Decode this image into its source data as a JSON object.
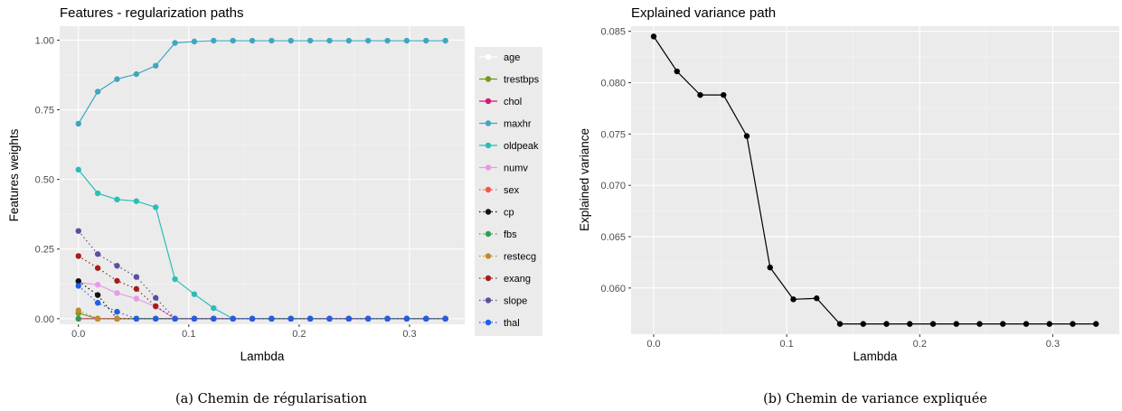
{
  "chart_data": [
    {
      "type": "line",
      "title": "Features - regularization paths",
      "xlabel": "Lambda",
      "ylabel": "Features weights",
      "xlim": [
        -0.017,
        0.35
      ],
      "ylim": [
        -0.02,
        1.05
      ],
      "xticks": [
        0.0,
        0.1,
        0.2,
        0.3
      ],
      "xtick_labels": [
        "0.0",
        "0.1",
        "0.2",
        "0.3"
      ],
      "yticks": [
        0.0,
        0.25,
        0.5,
        0.75,
        1.0
      ],
      "ytick_labels": [
        "0.00",
        "0.25",
        "0.50",
        "0.75",
        "1.00"
      ],
      "grid": true,
      "legend_position": "right",
      "caption": "(a)  Chemin de régularisation",
      "x": [
        0,
        0.0175,
        0.035,
        0.0525,
        0.07,
        0.0875,
        0.105,
        0.1225,
        0.14,
        0.1575,
        0.175,
        0.1925,
        0.21,
        0.2275,
        0.245,
        0.2625,
        0.28,
        0.2975,
        0.315,
        0.3325
      ],
      "series": [
        {
          "name": "age",
          "color": "#ffffff",
          "dash": "solid",
          "values": [
            0,
            0,
            0,
            0,
            0,
            0,
            0,
            0,
            0,
            0,
            0,
            0,
            0,
            0,
            0,
            0,
            0,
            0,
            0,
            0
          ]
        },
        {
          "name": "trestbps",
          "color": "#6e9a1f",
          "dash": "solid",
          "values": [
            0.02,
            0,
            0,
            0,
            0,
            0,
            0,
            0,
            0,
            0,
            0,
            0,
            0,
            0,
            0,
            0,
            0,
            0,
            0,
            0
          ]
        },
        {
          "name": "chol",
          "color": "#d41a73",
          "dash": "solid",
          "values": [
            0,
            0,
            0,
            0,
            0,
            0,
            0,
            0,
            0,
            0,
            0,
            0,
            0,
            0,
            0,
            0,
            0,
            0,
            0,
            0
          ]
        },
        {
          "name": "maxhr",
          "color": "#41a5c0",
          "dash": "solid",
          "values": [
            0.7,
            0.815,
            0.86,
            0.878,
            0.908,
            0.99,
            0.995,
            0.998,
            0.998,
            0.998,
            0.998,
            0.998,
            0.998,
            0.998,
            0.998,
            0.998,
            0.998,
            0.998,
            0.998,
            0.998
          ]
        },
        {
          "name": "oldpeak",
          "color": "#2bbdb8",
          "dash": "solid",
          "values": [
            0.535,
            0.45,
            0.428,
            0.422,
            0.4,
            0.142,
            0.088,
            0.038,
            0,
            0,
            0,
            0,
            0,
            0,
            0,
            0,
            0,
            0,
            0,
            0
          ]
        },
        {
          "name": "numv",
          "color": "#e89ae6",
          "dash": "solid",
          "values": [
            0.13,
            0.122,
            0.092,
            0.072,
            0.043,
            0,
            0,
            0,
            0,
            0,
            0,
            0,
            0,
            0,
            0,
            0,
            0,
            0,
            0,
            0
          ]
        },
        {
          "name": "sex",
          "color": "#f0584a",
          "dash": "dotted",
          "values": [
            0,
            0,
            0,
            0,
            0,
            0,
            0,
            0,
            0,
            0,
            0,
            0,
            0,
            0,
            0,
            0,
            0,
            0,
            0,
            0
          ]
        },
        {
          "name": "cp",
          "color": "#111111",
          "dash": "dotted",
          "values": [
            0.135,
            0.085,
            0,
            0,
            0,
            0,
            0,
            0,
            0,
            0,
            0,
            0,
            0,
            0,
            0,
            0,
            0,
            0,
            0,
            0
          ]
        },
        {
          "name": "fbs",
          "color": "#2f9e55",
          "dash": "dotted",
          "values": [
            0,
            0,
            0,
            0,
            0,
            0,
            0,
            0,
            0,
            0,
            0,
            0,
            0,
            0,
            0,
            0,
            0,
            0,
            0,
            0
          ]
        },
        {
          "name": "restecg",
          "color": "#c28a2e",
          "dash": "dotted",
          "values": [
            0.03,
            0,
            0,
            0,
            0,
            0,
            0,
            0,
            0,
            0,
            0,
            0,
            0,
            0,
            0,
            0,
            0,
            0,
            0,
            0
          ]
        },
        {
          "name": "exang",
          "color": "#a51c1c",
          "dash": "dotted",
          "values": [
            0.225,
            0.182,
            0.136,
            0.107,
            0.045,
            0,
            0,
            0,
            0,
            0,
            0,
            0,
            0,
            0,
            0,
            0,
            0,
            0,
            0,
            0
          ]
        },
        {
          "name": "slope",
          "color": "#5d4f9e",
          "dash": "dotted",
          "values": [
            0.315,
            0.232,
            0.19,
            0.15,
            0.075,
            0,
            0,
            0,
            0,
            0,
            0,
            0,
            0,
            0,
            0,
            0,
            0,
            0,
            0,
            0
          ]
        },
        {
          "name": "thal",
          "color": "#1f5ee8",
          "dash": "dotted",
          "values": [
            0.118,
            0.057,
            0.025,
            0,
            0,
            0,
            0,
            0,
            0,
            0,
            0,
            0,
            0,
            0,
            0,
            0,
            0,
            0,
            0,
            0
          ]
        }
      ]
    },
    {
      "type": "line",
      "title": "Explained variance path",
      "xlabel": "Lambda",
      "ylabel": "Explained variance",
      "xlim": [
        -0.017,
        0.35
      ],
      "ylim": [
        0.0555,
        0.0855
      ],
      "xticks": [
        0.0,
        0.1,
        0.2,
        0.3
      ],
      "xtick_labels": [
        "0.0",
        "0.1",
        "0.2",
        "0.3"
      ],
      "yticks": [
        0.06,
        0.065,
        0.07,
        0.075,
        0.08,
        0.085
      ],
      "ytick_labels": [
        "0.060",
        "0.065",
        "0.070",
        "0.075",
        "0.080",
        "0.085"
      ],
      "grid": true,
      "caption": "(b)  Chemin de variance expliquée",
      "x": [
        0,
        0.0175,
        0.035,
        0.0525,
        0.07,
        0.0875,
        0.105,
        0.1225,
        0.14,
        0.1575,
        0.175,
        0.1925,
        0.21,
        0.2275,
        0.245,
        0.2625,
        0.28,
        0.2975,
        0.315,
        0.3325
      ],
      "series": [
        {
          "color": "#000000",
          "values": [
            0.0845,
            0.0811,
            0.0788,
            0.0788,
            0.0748,
            0.062,
            0.0589,
            0.059,
            0.0565,
            0.0565,
            0.0565,
            0.0565,
            0.0565,
            0.0565,
            0.0565,
            0.0565,
            0.0565,
            0.0565,
            0.0565,
            0.0565
          ]
        }
      ]
    }
  ]
}
